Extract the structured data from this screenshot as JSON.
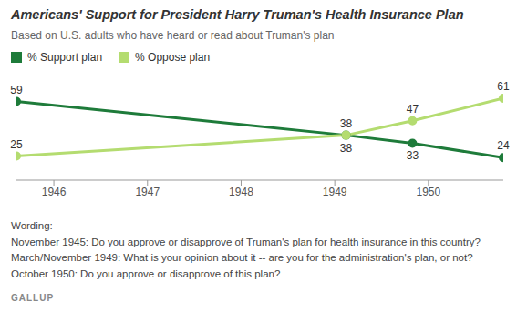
{
  "chart_data": {
    "type": "line",
    "title": "Americans' Support for President Harry Truman's Health Insurance Plan",
    "subtitle": "Based on U.S. adults who have heard or read about Truman's plan",
    "x": [
      1945.6,
      1949.12,
      1949.83,
      1950.8
    ],
    "xlim": [
      1945.6,
      1950.8
    ],
    "xticks": [
      1946,
      1947,
      1948,
      1949,
      1950
    ],
    "ylim": [
      10,
      65
    ],
    "yticks": [
      10,
      65
    ],
    "tick_labels": "x",
    "grid": false,
    "legend": "top-left",
    "data_labels": true,
    "series": [
      {
        "name": "% Support plan",
        "color": "#1e7b3a",
        "marker": "circle",
        "values": [
          59,
          38,
          33,
          24
        ]
      },
      {
        "name": "% Oppose plan",
        "color": "#b4dc70",
        "marker": "circle",
        "values": [
          25,
          38,
          47,
          61
        ]
      }
    ],
    "notes": [
      "Wording:",
      "November 1945: Do you approve or disapprove of Truman's plan for health insurance in this country?",
      "March/November 1949: What is your opinion about it -- are you for the administration's plan, or not?",
      "October 1950: Do you approve or disapprove of this plan?"
    ],
    "source": "GALLUP"
  }
}
